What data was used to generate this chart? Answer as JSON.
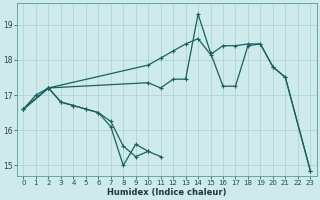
{
  "xlabel": "Humidex (Indice chaleur)",
  "background_color": "#ceeaea",
  "grid_color": "#aacfcf",
  "line_color": "#1a6060",
  "xlim": [
    -0.5,
    23.5
  ],
  "ylim": [
    14.7,
    19.6
  ],
  "yticks": [
    15,
    16,
    17,
    18,
    19
  ],
  "xticks": [
    0,
    1,
    2,
    3,
    4,
    5,
    6,
    7,
    8,
    9,
    10,
    11,
    12,
    13,
    14,
    15,
    16,
    17,
    18,
    19,
    20,
    21,
    22,
    23
  ],
  "series1_x": [
    0,
    1,
    2,
    3,
    4,
    5,
    6,
    7,
    8,
    9,
    10,
    11
  ],
  "series1_y": [
    16.6,
    17.0,
    17.2,
    16.8,
    16.7,
    16.6,
    16.5,
    16.1,
    15.0,
    15.6,
    15.4,
    15.25
  ],
  "series2_x": [
    0,
    2,
    3,
    4,
    5,
    6,
    7,
    8,
    9,
    10
  ],
  "series2_y": [
    16.6,
    17.2,
    16.8,
    16.7,
    16.6,
    16.5,
    16.25,
    15.55,
    15.25,
    15.4
  ],
  "series3_x": [
    0,
    2,
    10,
    11,
    12,
    13,
    14,
    15,
    16,
    17,
    18,
    19,
    20,
    21,
    23
  ],
  "series3_y": [
    16.6,
    17.2,
    17.35,
    17.2,
    17.45,
    17.45,
    19.3,
    18.2,
    17.25,
    17.25,
    18.4,
    18.45,
    17.8,
    17.5,
    14.85
  ],
  "series4_x": [
    0,
    2,
    10,
    11,
    12,
    13,
    14,
    15,
    16,
    17,
    18,
    19,
    20,
    21,
    23
  ],
  "series4_y": [
    16.6,
    17.2,
    17.85,
    18.05,
    18.25,
    18.45,
    18.6,
    18.15,
    18.4,
    18.4,
    18.45,
    18.45,
    17.8,
    17.5,
    14.85
  ]
}
